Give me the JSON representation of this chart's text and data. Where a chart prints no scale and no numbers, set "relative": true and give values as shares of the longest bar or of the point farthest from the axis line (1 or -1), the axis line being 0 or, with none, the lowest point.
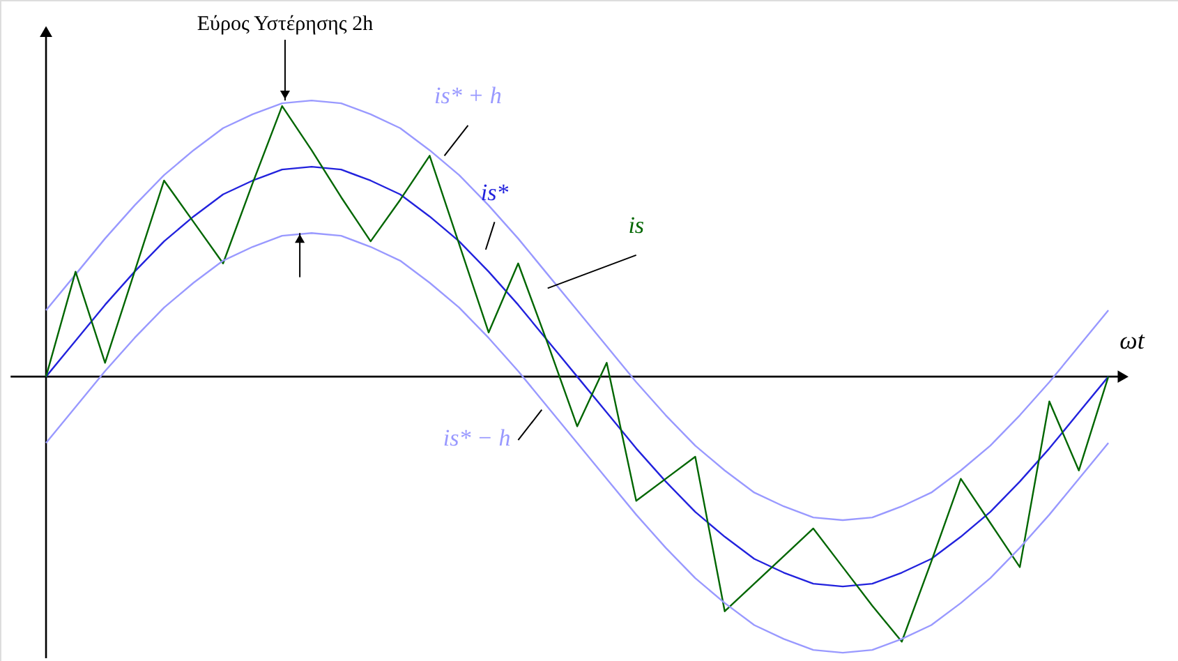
{
  "chart_data": {
    "type": "line",
    "relative": true,
    "xlabel": "ωt",
    "annotations": [
      "Εύρος Υστέρησης 2h"
    ],
    "legend": false,
    "marker": "none",
    "line_style": "solid",
    "categories": [
      null,
      null,
      null,
      null,
      null,
      null,
      null,
      null,
      null,
      null,
      null,
      null,
      null,
      null,
      null,
      null,
      null,
      null,
      null,
      null,
      null,
      null,
      null,
      null,
      null,
      null,
      null,
      null,
      null,
      null,
      null,
      null,
      null,
      null,
      null,
      null,
      null
    ],
    "series": [
      {
        "name": "is* + h",
        "color": "#9999ff",
        "values": [
          0.24,
          0.37,
          0.5,
          0.62,
          0.73,
          0.82,
          0.9,
          0.95,
          0.99,
          1.0,
          0.99,
          0.95,
          0.9,
          0.82,
          0.73,
          0.62,
          0.5,
          0.37,
          0.24,
          0.11,
          -0.02,
          -0.14,
          -0.25,
          -0.34,
          -0.42,
          -0.47,
          -0.51,
          -0.52,
          -0.51,
          -0.47,
          -0.42,
          -0.34,
          -0.25,
          -0.14,
          -0.02,
          0.11,
          0.24
        ]
      },
      {
        "name": "is*",
        "color": "#2222dd",
        "values": [
          0,
          0.13,
          0.26,
          0.38,
          0.49,
          0.58,
          0.66,
          0.71,
          0.75,
          0.76,
          0.75,
          0.71,
          0.66,
          0.58,
          0.49,
          0.38,
          0.26,
          0.13,
          0,
          -0.13,
          -0.26,
          -0.38,
          -0.49,
          -0.58,
          -0.66,
          -0.71,
          -0.75,
          -0.76,
          -0.75,
          -0.71,
          -0.66,
          -0.58,
          -0.49,
          -0.38,
          -0.26,
          -0.13,
          0
        ]
      },
      {
        "name": "is",
        "color": "#006600",
        "values": [
          0,
          0.38,
          0.05,
          0.38,
          0.71,
          0.56,
          0.41,
          0.7,
          0.98,
          0.82,
          0.65,
          0.49,
          0.64,
          0.8,
          0.48,
          0.16,
          0.41,
          0.12,
          -0.18,
          0.05,
          -0.45,
          -0.37,
          -0.29,
          -0.85,
          -0.75,
          -0.65,
          -0.55,
          -0.69,
          -0.83,
          -0.96,
          -0.67,
          -0.37,
          -0.53,
          -0.69,
          -0.09,
          -0.34,
          0
        ]
      },
      {
        "name": "is* − h",
        "color": "#9999ff",
        "values": [
          -0.24,
          -0.11,
          0.02,
          0.14,
          0.25,
          0.34,
          0.42,
          0.47,
          0.51,
          0.52,
          0.51,
          0.47,
          0.42,
          0.34,
          0.25,
          0.14,
          0.02,
          -0.11,
          -0.24,
          -0.37,
          -0.5,
          -0.62,
          -0.73,
          -0.82,
          -0.9,
          -0.95,
          -0.99,
          -1.0,
          -0.99,
          -0.95,
          -0.9,
          -0.82,
          -0.73,
          -0.62,
          -0.5,
          -0.37,
          -0.24
        ]
      }
    ]
  }
}
